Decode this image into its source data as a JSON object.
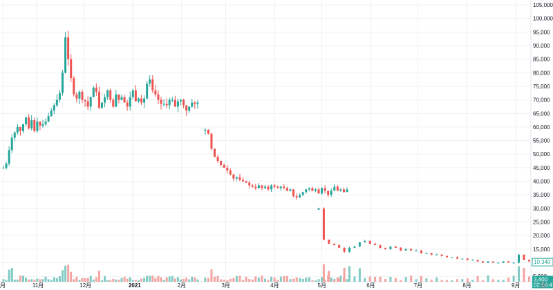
{
  "chart_data": {
    "type": "candlestick",
    "grid": true,
    "y_axis": {
      "position": "right",
      "ylim": [
        0,
        105000
      ],
      "ticks": [
        "5,000",
        "10,000",
        "15,000",
        "20,000",
        "25,000",
        "30,000",
        "35,000",
        "40,000",
        "45,000",
        "50,000",
        "55,000",
        "60,000",
        "65,000",
        "70,000",
        "75,000",
        "80,000",
        "85,000",
        "90,000",
        "95,000",
        "100,000",
        "105,000"
      ],
      "tick_values": [
        5000,
        10000,
        15000,
        20000,
        25000,
        30000,
        35000,
        40000,
        45000,
        50000,
        55000,
        60000,
        65000,
        70000,
        75000,
        80000,
        85000,
        90000,
        95000,
        100000,
        105000
      ]
    },
    "x_axis": {
      "labels": [
        {
          "text": "月",
          "day": 0,
          "bold": false
        },
        {
          "text": "11月",
          "day": 21,
          "bold": false
        },
        {
          "text": "12月",
          "day": 51,
          "bold": false
        },
        {
          "text": "2021",
          "day": 82,
          "bold": true
        },
        {
          "text": "2月",
          "day": 113,
          "bold": false
        },
        {
          "text": "3月",
          "day": 141,
          "bold": false
        },
        {
          "text": "4月",
          "day": 172,
          "bold": false
        },
        {
          "text": "5月",
          "day": 202,
          "bold": false
        },
        {
          "text": "6月",
          "day": 233,
          "bold": false
        },
        {
          "text": "7月",
          "day": 263,
          "bold": false
        },
        {
          "text": "8月",
          "day": 294,
          "bold": false
        },
        {
          "text": "9月",
          "day": 325,
          "bold": false
        }
      ]
    },
    "colors": {
      "up": "#26a69a",
      "down": "#ef5350",
      "up_volume": "#80cbc4",
      "down_volume": "#f4a3a0",
      "grid": "#eef0f3",
      "text": "#131722"
    },
    "segments": [
      {
        "start_day": 0,
        "days": 125,
        "closes": [
          45000,
          46500,
          51500,
          56000,
          58000,
          60000,
          58500,
          61000,
          63500,
          59500,
          62500,
          58500,
          62000,
          60500,
          61000,
          62000,
          64000,
          66000,
          68000,
          70000,
          72500,
          80000,
          93000,
          85000,
          78000,
          72000,
          70500,
          73000,
          70000,
          69500,
          67500,
          71000,
          74500,
          73000,
          67000,
          69000,
          71000,
          73500,
          70000,
          67500,
          72000,
          70000,
          71000,
          69000,
          67500,
          71000,
          73500,
          69500,
          70500,
          69000,
          70500,
          76000,
          77500,
          73500,
          72000,
          70000,
          68500,
          68500,
          68000,
          70000,
          70000,
          67500,
          69500,
          70000,
          68000,
          66000,
          67500,
          69000,
          68500,
          69000
        ]
      },
      {
        "start_day": 128,
        "days": 92,
        "closes": [
          59000,
          57500,
          52000,
          49000,
          47500,
          46000,
          45000,
          44000,
          42500,
          41000,
          41500,
          40500,
          40000,
          39500,
          38500,
          38000,
          37500,
          38500,
          37500,
          38000,
          37000,
          38500,
          38000,
          37500,
          38000,
          37500,
          36500,
          37000,
          34500,
          34000,
          35000,
          36000,
          37000,
          37500,
          36500,
          37000,
          35500,
          37500,
          36500,
          35000,
          36500,
          38000,
          36500,
          37000,
          36000,
          37000
        ]
      },
      {
        "start_day": 200,
        "days": 140,
        "closes": [
          30000,
          18500,
          17000,
          16500,
          15500,
          14000,
          15500,
          16000,
          17500,
          18000,
          17000,
          16500,
          15500,
          15000,
          16000,
          15500,
          14500,
          15000,
          14500,
          14500,
          13500,
          13500,
          13000,
          13000,
          12500,
          12000,
          12000,
          11500,
          11500,
          11000,
          11000,
          10500,
          10000,
          10500,
          10000,
          10000,
          10500,
          10000,
          10000,
          13000,
          11000,
          10500,
          10340
        ]
      }
    ],
    "price_tags": [
      {
        "label": "10,340",
        "value": 10340,
        "style": "outline"
      },
      {
        "label": "3,400",
        "sublabel": "02:56:41",
        "value": 3400,
        "style": "solid"
      }
    ]
  }
}
